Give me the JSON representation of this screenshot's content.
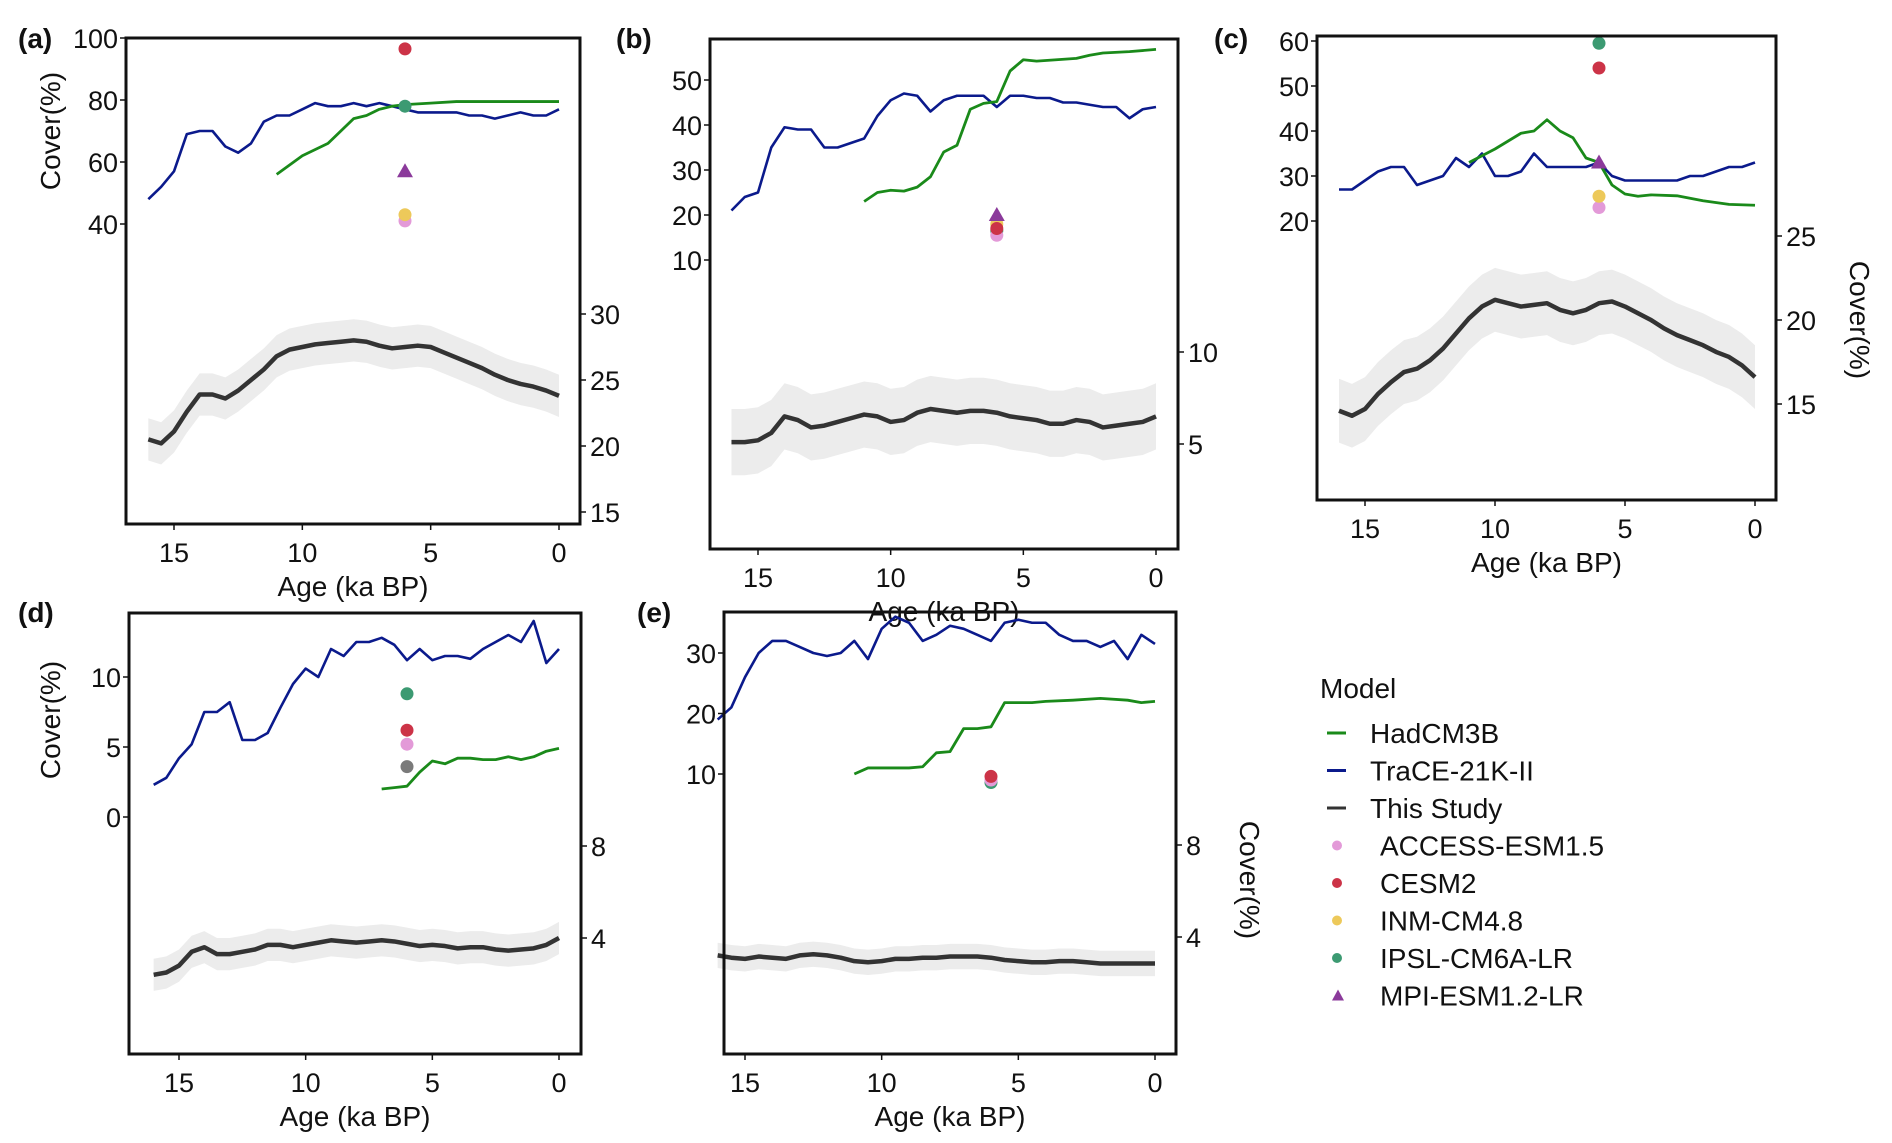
{
  "figure": {
    "legend_title": "Model",
    "legend": [
      {
        "label": "HadCM3B",
        "kind": "line",
        "color": "#1a8a1a"
      },
      {
        "label": "TraCE-21K-II",
        "kind": "line",
        "color": "#0b1a8c"
      },
      {
        "label": "This Study",
        "kind": "line",
        "color": "#333333"
      },
      {
        "label": "ACCESS-ESM1.5",
        "kind": "dot",
        "color": "#e39ad8"
      },
      {
        "label": "CESM2",
        "kind": "dot",
        "color": "#cc3347"
      },
      {
        "label": "INM-CM4.8",
        "kind": "dot",
        "color": "#edc95a"
      },
      {
        "label": "IPSL-CM6A-LR",
        "kind": "dot",
        "color": "#3c9a72"
      },
      {
        "label": "MPI-ESM1.2-LR",
        "kind": "triangle",
        "color": "#8b3a9b"
      }
    ]
  },
  "chart_data": [
    {
      "panel": "(a)",
      "type": "line",
      "xlabel": "Age (ka BP)",
      "xlim": [
        16.5,
        -0.6
      ],
      "xticks": [
        15,
        10,
        5,
        0
      ],
      "ylabel_left": "Cover(%)",
      "yticks_left": [
        40,
        60,
        80,
        100
      ],
      "ylim_left": [
        40,
        100
      ],
      "yticks_right": [
        15,
        20,
        25,
        30
      ],
      "ylim_right": [
        15,
        30
      ],
      "ylabel_right": "",
      "hadcm3b": {
        "x": [
          11,
          10,
          9,
          8.5,
          8,
          7.5,
          7,
          6.5,
          6,
          5,
          4,
          3,
          2,
          1,
          0
        ],
        "y": [
          56,
          62,
          66,
          70,
          74,
          75,
          77,
          78,
          78.5,
          79,
          79.5,
          79.5,
          79.5,
          79.5,
          79.5
        ]
      },
      "trace": {
        "x": [
          16,
          15.5,
          15,
          14.5,
          14,
          13.5,
          13,
          12.5,
          12,
          11.5,
          11,
          10.5,
          10,
          9.5,
          9,
          8.5,
          8,
          7.5,
          7,
          6.5,
          6,
          5.5,
          5,
          4.5,
          4,
          3.5,
          3,
          2.5,
          2,
          1.5,
          1,
          0.5,
          0
        ],
        "y": [
          48,
          52,
          57,
          69,
          70,
          70,
          65,
          63,
          66,
          73,
          75,
          75,
          77,
          79,
          78,
          78,
          79,
          78,
          79,
          78,
          77,
          76,
          76,
          76,
          76,
          75,
          75,
          74,
          75,
          76,
          75,
          75,
          77
        ]
      },
      "this_study": {
        "x": [
          16,
          15.5,
          15,
          14.5,
          14,
          13.5,
          13,
          12.5,
          12,
          11.5,
          11,
          10.5,
          10,
          9.5,
          9,
          8.5,
          8,
          7.5,
          7,
          6.5,
          6,
          5.5,
          5,
          4.5,
          4,
          3.5,
          3,
          2.5,
          2,
          1.5,
          1,
          0.5,
          0
        ],
        "y": [
          20.5,
          20.2,
          21.1,
          22.6,
          23.9,
          23.9,
          23.6,
          24.2,
          25.0,
          25.8,
          26.8,
          27.3,
          27.5,
          27.7,
          27.8,
          27.9,
          28.0,
          27.9,
          27.6,
          27.4,
          27.5,
          27.6,
          27.5,
          27.1,
          26.7,
          26.3,
          25.9,
          25.4,
          25.0,
          24.7,
          24.5,
          24.2,
          23.8
        ],
        "band_halfwidth": 1.6
      },
      "markers_6ka": {
        "CESM2": 96.5,
        "IPSL-CM6A-LR": 78,
        "MPI-ESM1.2-LR": 57,
        "INM-CM4.8": 43,
        "ACCESS-ESM1.5": 41
      }
    },
    {
      "panel": "(b)",
      "type": "line",
      "xlabel": "Age (ka BP)",
      "xlim": [
        16.5,
        -0.6
      ],
      "xticks": [
        15,
        10,
        5,
        0
      ],
      "ylabel_left": "",
      "yticks_left": [
        10,
        20,
        30,
        40,
        50
      ],
      "ylim_left": [
        10,
        50
      ],
      "yticks_right": [
        5,
        10
      ],
      "ylim_right": [
        5,
        10
      ],
      "ylabel_right": "",
      "hadcm3b": {
        "x": [
          11,
          10.5,
          10,
          9.5,
          9,
          8.5,
          8,
          7.5,
          7,
          6.5,
          6,
          5.5,
          5,
          4.5,
          3,
          2.5,
          2,
          1,
          0
        ],
        "y": [
          23,
          25,
          25.5,
          25.3,
          26.2,
          28.5,
          34,
          35.5,
          43.5,
          44.8,
          45.2,
          52,
          54.5,
          54.2,
          54.8,
          55.5,
          56,
          56.3,
          56.8
        ]
      },
      "trace": {
        "x": [
          16,
          15.5,
          15,
          14.5,
          14,
          13.5,
          13,
          12.5,
          12,
          11.5,
          11,
          10.5,
          10,
          9.5,
          9,
          8.5,
          8,
          7.5,
          7,
          6.5,
          6,
          5.5,
          5,
          4.5,
          4,
          3.5,
          3,
          2.5,
          2,
          1.5,
          1,
          0.5,
          0
        ],
        "y": [
          21,
          24,
          25,
          35,
          39.5,
          39,
          39,
          35,
          35,
          36,
          37,
          42,
          45.5,
          47,
          46.5,
          43,
          45.5,
          46.5,
          46.5,
          46.5,
          44,
          46.5,
          46.5,
          46,
          46,
          45,
          45,
          44.5,
          44,
          44,
          41.5,
          43.5,
          44
        ]
      },
      "this_study": {
        "x": [
          16,
          15.5,
          15,
          14.5,
          14,
          13.5,
          13,
          12.5,
          12,
          11.5,
          11,
          10.5,
          10,
          9.5,
          9,
          8.5,
          8,
          7.5,
          7,
          6.5,
          6,
          5.5,
          5,
          4.5,
          4,
          3.5,
          3,
          2.5,
          2,
          1.5,
          1,
          0.5,
          0
        ],
        "y": [
          5.1,
          5.1,
          5.2,
          5.6,
          6.5,
          6.3,
          5.9,
          6.0,
          6.2,
          6.4,
          6.6,
          6.5,
          6.2,
          6.3,
          6.7,
          6.9,
          6.8,
          6.7,
          6.8,
          6.8,
          6.7,
          6.5,
          6.4,
          6.3,
          6.1,
          6.1,
          6.3,
          6.2,
          5.9,
          6.0,
          6.1,
          6.2,
          6.5
        ],
        "band_halfwidth": 1.8
      },
      "markers_6ka": {
        "MPI-ESM1.2-LR": 20,
        "INM-CM4.8": 18,
        "CESM2": 17,
        "IPSL-CM6A-LR": 16.5,
        "ACCESS-ESM1.5": 15.5
      }
    },
    {
      "panel": "(c)",
      "type": "line",
      "xlabel": "Age (ka BP)",
      "xlim": [
        16.5,
        -0.6
      ],
      "xticks": [
        15,
        10,
        5,
        0
      ],
      "ylabel_left": "",
      "yticks_left": [
        20,
        30,
        40,
        50,
        60
      ],
      "ylim_left": [
        20,
        60
      ],
      "yticks_right": [
        15,
        20,
        25
      ],
      "ylim_right": [
        15,
        25
      ],
      "ylabel_right": "Cover(%)",
      "hadcm3b": {
        "x": [
          11,
          10,
          9,
          8.5,
          8,
          7.5,
          7,
          6.5,
          6,
          5.5,
          5,
          4.5,
          4,
          3,
          2,
          1,
          0
        ],
        "y": [
          33,
          36,
          39.5,
          40,
          42.5,
          40,
          38.5,
          34,
          33,
          28,
          26,
          25.5,
          25.8,
          25.6,
          24.5,
          23.7,
          23.5
        ]
      },
      "trace": {
        "x": [
          16,
          15.5,
          15,
          14.5,
          14,
          13.5,
          13,
          12.5,
          12,
          11.5,
          11,
          10.5,
          10,
          9.5,
          9,
          8.5,
          8,
          7.5,
          7,
          6.5,
          6,
          5.5,
          5,
          4.5,
          4,
          3.5,
          3,
          2.5,
          2,
          1.5,
          1,
          0.5,
          0
        ],
        "y": [
          27,
          27,
          29,
          31,
          32,
          32,
          28,
          29,
          30,
          34,
          32,
          35,
          30,
          30,
          31,
          35,
          32,
          32,
          32,
          32,
          33,
          30,
          29,
          29,
          29,
          29,
          29,
          30,
          30,
          31,
          32,
          32,
          33
        ]
      },
      "this_study": {
        "x": [
          16,
          15.5,
          15,
          14.5,
          14,
          13.5,
          13,
          12.5,
          12,
          11.5,
          11,
          10.5,
          10,
          9.5,
          9,
          8.5,
          8,
          7.5,
          7,
          6.5,
          6,
          5.5,
          5,
          4.5,
          4,
          3.5,
          3,
          2.5,
          2,
          1.5,
          1,
          0.5,
          0
        ],
        "y": [
          14.6,
          14.3,
          14.7,
          15.6,
          16.3,
          16.9,
          17.1,
          17.6,
          18.3,
          19.2,
          20.1,
          20.8,
          21.2,
          21.0,
          20.8,
          20.9,
          21.0,
          20.6,
          20.4,
          20.6,
          21.0,
          21.1,
          20.8,
          20.4,
          20.0,
          19.5,
          19.1,
          18.8,
          18.5,
          18.1,
          17.8,
          17.3,
          16.6
        ],
        "band_halfwidth": 1.9
      },
      "markers_6ka": {
        "IPSL-CM6A-LR": 59.5,
        "CESM2": 54,
        "MPI-ESM1.2-LR": 33,
        "INM-CM4.8": 25.5,
        "ACCESS-ESM1.5": 23
      }
    },
    {
      "panel": "(d)",
      "type": "line",
      "xlabel": "Age (ka BP)",
      "xlim": [
        16.5,
        -0.6
      ],
      "xticks": [
        15,
        10,
        5,
        0
      ],
      "ylabel_left": "Cover(%)",
      "yticks_left": [
        0,
        5,
        10
      ],
      "ylim_left": [
        0,
        10
      ],
      "yticks_right": [
        4,
        8
      ],
      "ylim_right": [
        4,
        8
      ],
      "ylabel_right": "",
      "hadcm3b": {
        "x": [
          7,
          6.5,
          6,
          5.5,
          5,
          4.5,
          4,
          3.5,
          3,
          2.5,
          2,
          1.5,
          1,
          0.5,
          0
        ],
        "y": [
          2,
          2.1,
          2.2,
          3.2,
          4,
          3.8,
          4.2,
          4.2,
          4.1,
          4.1,
          4.3,
          4.1,
          4.3,
          4.7,
          4.9
        ]
      },
      "trace": {
        "x": [
          16,
          15.5,
          15,
          14.5,
          14,
          13.5,
          13,
          12.5,
          12,
          11.5,
          11,
          10.5,
          10,
          9.5,
          9,
          8.5,
          8,
          7.5,
          7,
          6.5,
          6,
          5.5,
          5,
          4.5,
          4,
          3.5,
          3,
          2.5,
          2,
          1.5,
          1,
          0.5,
          0
        ],
        "y": [
          2.3,
          2.8,
          4.2,
          5.2,
          7.5,
          7.5,
          8.2,
          5.5,
          5.5,
          6,
          7.8,
          9.5,
          10.6,
          10,
          12,
          11.5,
          12.5,
          12.5,
          12.8,
          12.3,
          11.2,
          12,
          11.2,
          11.5,
          11.5,
          11.3,
          12,
          12.5,
          13,
          12.5,
          14,
          11,
          12
        ]
      },
      "this_study": {
        "x": [
          16,
          15.5,
          15,
          14.5,
          14,
          13.5,
          13,
          12.5,
          12,
          11.5,
          11,
          10.5,
          10,
          9.5,
          9,
          8.5,
          8,
          7.5,
          7,
          6.5,
          6,
          5.5,
          5,
          4.5,
          4,
          3.5,
          3,
          2.5,
          2,
          1.5,
          1,
          0.5,
          0
        ],
        "y": [
          2.4,
          2.5,
          2.8,
          3.4,
          3.6,
          3.3,
          3.3,
          3.4,
          3.5,
          3.7,
          3.7,
          3.6,
          3.7,
          3.8,
          3.9,
          3.85,
          3.8,
          3.85,
          3.9,
          3.85,
          3.75,
          3.65,
          3.7,
          3.65,
          3.55,
          3.6,
          3.6,
          3.5,
          3.45,
          3.5,
          3.55,
          3.7,
          4.0
        ],
        "band_halfwidth": 0.7
      },
      "markers_6ka": {
        "IPSL-CM6A-LR": 8.8,
        "CESM2": 6.2,
        "ACCESS-ESM1.5": 5.2,
        "unlabeled_gray": 3.6
      }
    },
    {
      "panel": "(e)",
      "type": "line",
      "xlabel": "Age (ka BP)",
      "xlim": [
        16.5,
        -0.6
      ],
      "xticks": [
        15,
        10,
        5,
        0
      ],
      "ylabel_left": "",
      "yticks_left": [
        10,
        20,
        30
      ],
      "ylim_left": [
        10,
        30
      ],
      "yticks_right": [
        4,
        8
      ],
      "ylim_right": [
        4,
        8
      ],
      "ylabel_right": "Cover(%)",
      "hadcm3b": {
        "x": [
          11,
          10.5,
          9.5,
          9,
          8.5,
          8,
          7.5,
          7,
          6.5,
          6,
          5.5,
          4.5,
          4,
          3,
          2,
          1,
          0.5,
          0
        ],
        "y": [
          10,
          11,
          11,
          11,
          11.2,
          13.5,
          13.7,
          17.5,
          17.5,
          17.8,
          21.8,
          21.8,
          22,
          22.2,
          22.5,
          22.2,
          21.8,
          22
        ]
      },
      "trace": {
        "x": [
          16,
          15.5,
          15,
          14.5,
          14,
          13.5,
          13,
          12.5,
          12,
          11.5,
          11,
          10.5,
          10,
          9.5,
          9,
          8.5,
          8,
          7.5,
          7,
          6.5,
          6,
          5.5,
          5,
          4.5,
          4,
          3.5,
          3,
          2.5,
          2,
          1.5,
          1,
          0.5,
          0
        ],
        "y": [
          19,
          21,
          26,
          30,
          32,
          32,
          31,
          30,
          29.5,
          30,
          32,
          29,
          34,
          36,
          35,
          32,
          33,
          34.5,
          34,
          33,
          32,
          35,
          35.5,
          35,
          35,
          33,
          32,
          32,
          31,
          32,
          29,
          33,
          31.5
        ]
      },
      "this_study": {
        "x": [
          16,
          15.5,
          15,
          14.5,
          14,
          13.5,
          13,
          12.5,
          12,
          11.5,
          11,
          10.5,
          10,
          9.5,
          9,
          8.5,
          8,
          7.5,
          7,
          6.5,
          6,
          5.5,
          5,
          4.5,
          4,
          3.5,
          3,
          2.5,
          2,
          1.5,
          1,
          0.5,
          0
        ],
        "y": [
          3.2,
          3.1,
          3.05,
          3.15,
          3.1,
          3.05,
          3.2,
          3.25,
          3.2,
          3.1,
          2.95,
          2.9,
          2.95,
          3.05,
          3.05,
          3.1,
          3.1,
          3.15,
          3.15,
          3.15,
          3.1,
          3.0,
          2.95,
          2.9,
          2.9,
          2.95,
          2.95,
          2.9,
          2.85,
          2.85,
          2.85,
          2.85,
          2.85
        ],
        "band_halfwidth": 0.55
      },
      "markers_6ka": {
        "CESM2": 9.6,
        "ACCESS-ESM1.5": 9.0,
        "IPSL-CM6A-LR": 8.6
      }
    }
  ]
}
